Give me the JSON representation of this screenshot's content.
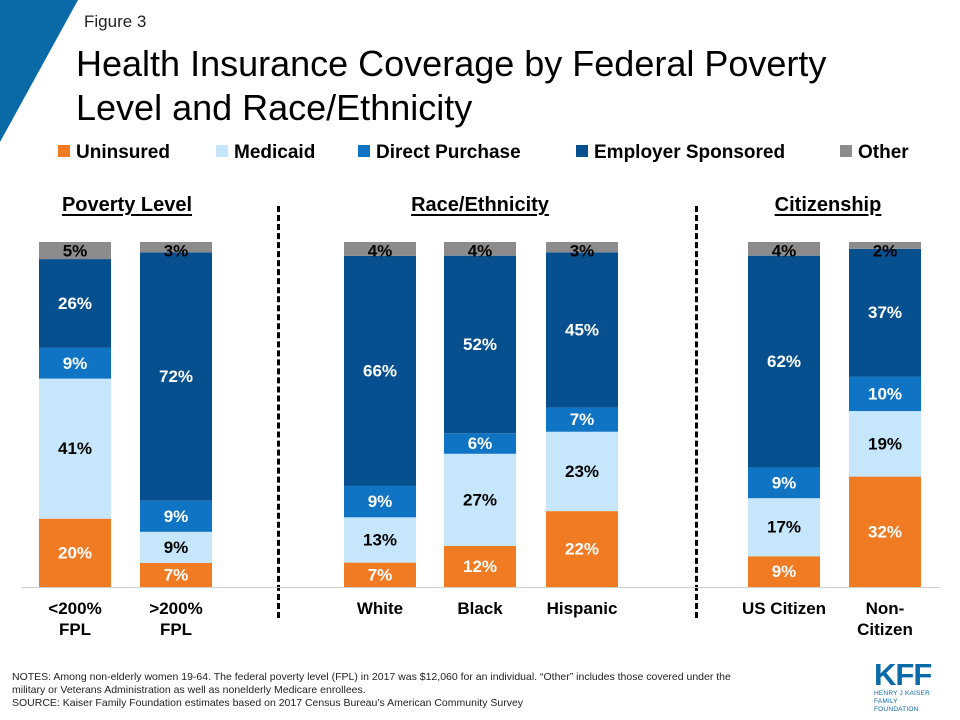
{
  "figure_label": "Figure 3",
  "title_lines": [
    "Health Insurance Coverage by Federal Poverty",
    "Level and Race/Ethnicity"
  ],
  "colors": {
    "Uninsured": "#f07b22",
    "Medicaid": "#c6e6fb",
    "Direct Purchase": "#0f74c4",
    "Employer Sponsored": "#07508f",
    "Other": "#8c8c8c",
    "accent": "#0a6aa8"
  },
  "chart_data": {
    "type": "bar",
    "stacked": true,
    "unit": "%",
    "ylim": [
      0,
      100
    ],
    "legend_position": "top",
    "groups": [
      "Poverty Level",
      "Race/Ethnicity",
      "Citizenship"
    ],
    "categories": [
      {
        "label": [
          "<200%",
          "FPL"
        ],
        "group": "Poverty Level"
      },
      {
        "label": [
          ">200%",
          "FPL"
        ],
        "group": "Poverty Level"
      },
      {
        "label": [
          "White"
        ],
        "group": "Race/Ethnicity"
      },
      {
        "label": [
          "Black"
        ],
        "group": "Race/Ethnicity"
      },
      {
        "label": [
          "Hispanic"
        ],
        "group": "Race/Ethnicity"
      },
      {
        "label": [
          "US Citizen"
        ],
        "group": "Citizenship"
      },
      {
        "label": [
          "Non-",
          "Citizen"
        ],
        "group": "Citizenship"
      }
    ],
    "series": [
      {
        "name": "Uninsured",
        "values": [
          20,
          7,
          7,
          12,
          22,
          9,
          32
        ]
      },
      {
        "name": "Medicaid",
        "values": [
          41,
          9,
          13,
          27,
          23,
          17,
          19
        ]
      },
      {
        "name": "Direct Purchase",
        "values": [
          9,
          9,
          9,
          6,
          7,
          9,
          10
        ]
      },
      {
        "name": "Employer Sponsored",
        "values": [
          26,
          72,
          66,
          52,
          45,
          62,
          37
        ]
      },
      {
        "name": "Other",
        "values": [
          5,
          3,
          4,
          4,
          3,
          4,
          2
        ]
      }
    ]
  },
  "notes": [
    "NOTES: Among non-elderly women 19-64. The federal poverty level (FPL) in 2017 was $12,060 for an individual. “Other” includes those covered under the",
    "military or Veterans Administration as well as nonelderly Medicare enrollees.",
    "SOURCE: Kaiser Family Foundation estimates based on 2017 Census Bureau’s American Community Survey"
  ],
  "logo": {
    "mark": "KFF",
    "sub_lines": [
      "HENRY J KAISER",
      "FAMILY FOUNDATION"
    ]
  }
}
